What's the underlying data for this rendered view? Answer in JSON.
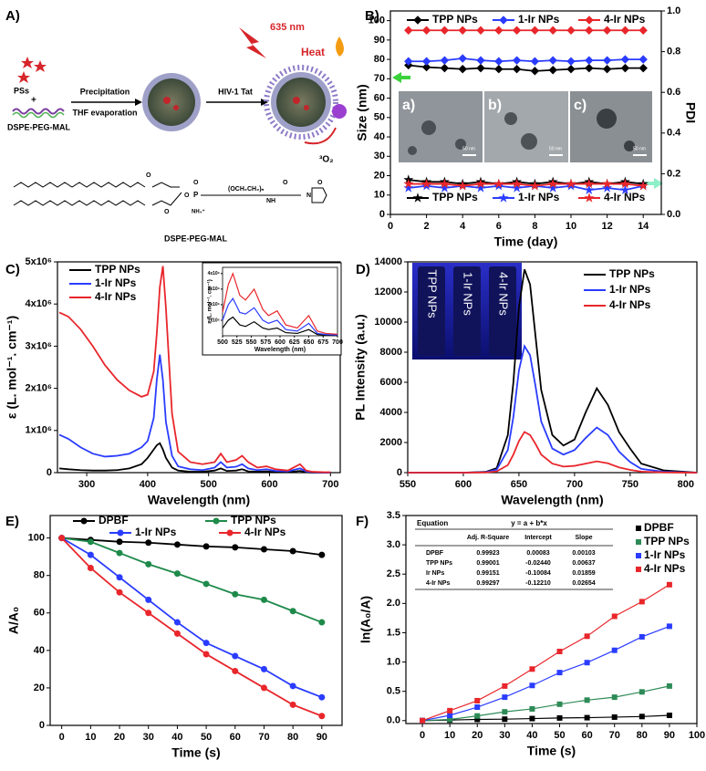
{
  "panel_a": {
    "label": "A)",
    "ps": "PSs",
    "plus": "+",
    "polymer": "DSPE-PEG-MAL",
    "step1": "Precipitation",
    "step2": "THF evaporation",
    "step3": "HIV-1 Tat",
    "laser": "635 nm",
    "heat": "Heat",
    "oxygen": "³O₂",
    "structure": [
      "O",
      "O",
      "O",
      "P",
      "O",
      "NH₄⁺",
      "(OCH₂CH₂)ₙ",
      "NH",
      "O",
      "N",
      "O"
    ],
    "structure_name": "DSPE-PEG-MAL"
  },
  "chart_data": [
    {
      "type": "line",
      "label": "B)",
      "xlabel": "Time (day)",
      "ylabel": "Size (nm)",
      "y2label": "PDI",
      "x": [
        1,
        2,
        3,
        4,
        5,
        6,
        7,
        8,
        9,
        10,
        11,
        12,
        13,
        14
      ],
      "xlim": [
        0,
        15
      ],
      "xticks": [
        0,
        2,
        4,
        6,
        8,
        10,
        12,
        14
      ],
      "ylim": [
        0,
        105
      ],
      "yticks": [
        0,
        10,
        20,
        30,
        40,
        50,
        60,
        70,
        80,
        90,
        100
      ],
      "y2lim": [
        0,
        1
      ],
      "y2ticks": [
        {
          "value": 0,
          "label": "0.0"
        },
        0.2,
        0.4,
        0.6,
        0.8,
        {
          "value": 1,
          "label": "1.0"
        }
      ],
      "series": [
        {
          "name": "TPP NPs",
          "color": "#000000",
          "marker": "diamond",
          "values": [
            77,
            76,
            75.5,
            75,
            75.5,
            75,
            75,
            74,
            74.5,
            75,
            75.5,
            75,
            75.5,
            75.5
          ]
        },
        {
          "name": "1-Ir NPs",
          "color": "#2a3cff",
          "marker": "diamond",
          "values": [
            79,
            79,
            79.5,
            80.5,
            79.5,
            79,
            79.5,
            79,
            79.5,
            79,
            79.5,
            79.5,
            80,
            80
          ]
        },
        {
          "name": "4-Ir NPs",
          "color": "#e8262b",
          "marker": "diamond",
          "values": [
            95,
            95,
            95,
            95,
            95,
            95,
            95,
            95,
            95,
            95,
            95,
            95,
            95,
            95
          ]
        },
        {
          "name": "TPP NPs",
          "color": "#000000",
          "marker": "star",
          "axis": "y2",
          "values": [
            0.17,
            0.16,
            0.16,
            0.15,
            0.16,
            0.15,
            0.16,
            0.15,
            0.16,
            0.15,
            0.16,
            0.15,
            0.16,
            0.15
          ]
        },
        {
          "name": "1-Ir NPs",
          "color": "#2a3cff",
          "marker": "star",
          "axis": "y2",
          "values": [
            0.13,
            0.14,
            0.13,
            0.14,
            0.13,
            0.14,
            0.13,
            0.14,
            0.13,
            0.14,
            0.12,
            0.13,
            0.12,
            0.14
          ]
        },
        {
          "name": "4-Ir NPs",
          "color": "#e8262b",
          "marker": "star",
          "axis": "y2",
          "values": [
            0.15,
            0.15,
            0.15,
            0.14,
            0.15,
            0.15,
            0.15,
            0.14,
            0.15,
            0.15,
            0.15,
            0.15,
            0.15,
            0.14
          ]
        }
      ],
      "inset_labels": [
        "a)",
        "b)",
        "c)"
      ],
      "scale_bar": "50 nm"
    },
    {
      "type": "line",
      "label": "C)",
      "xlabel": "Wavelength (nm)",
      "ylabel": "ε (L. mol⁻¹. cm⁻¹)",
      "x": [
        255,
        270,
        290,
        310,
        330,
        350,
        370,
        390,
        400,
        410,
        415,
        420,
        425,
        430,
        440,
        450,
        470,
        490,
        510,
        520,
        530,
        545,
        555,
        565,
        580,
        595,
        610,
        630,
        650,
        660,
        670,
        690,
        700
      ],
      "xlim": [
        252,
        716
      ],
      "xticks": [
        300,
        400,
        500,
        600,
        700
      ],
      "ylim": [
        0,
        5000000
      ],
      "yticks": [
        0,
        {
          "value": 1000000,
          "label": "1x10⁶"
        },
        {
          "value": 2000000,
          "label": "2x10⁶"
        },
        {
          "value": 3000000,
          "label": "3x10⁶"
        },
        {
          "value": 4000000,
          "label": "4x10⁶"
        },
        {
          "value": 5000000,
          "label": "5x10⁶"
        }
      ],
      "series": [
        {
          "name": "TPP NPs",
          "color": "#000000",
          "values": [
            100000,
            80000,
            60000,
            50000,
            50000,
            60000,
            100000,
            200000,
            350000,
            550000,
            650000,
            700000,
            550000,
            350000,
            120000,
            50000,
            20000,
            20000,
            50000,
            100000,
            40000,
            50000,
            80000,
            30000,
            20000,
            30000,
            10000,
            10000,
            40000,
            10000,
            0,
            0,
            0
          ]
        },
        {
          "name": "1-Ir NPs",
          "color": "#2a3cff",
          "values": [
            900000,
            800000,
            600000,
            450000,
            380000,
            400000,
            450000,
            600000,
            750000,
            1300000,
            2200000,
            2800000,
            2200000,
            1200000,
            400000,
            150000,
            80000,
            60000,
            120000,
            250000,
            120000,
            140000,
            200000,
            100000,
            60000,
            80000,
            40000,
            30000,
            100000,
            30000,
            10000,
            0,
            0
          ]
        },
        {
          "name": "4-Ir NPs",
          "color": "#e8262b",
          "values": [
            3800000,
            3700000,
            3400000,
            3000000,
            2550000,
            2200000,
            1950000,
            1800000,
            1850000,
            2400000,
            3300000,
            4400000,
            4900000,
            3900000,
            1400000,
            500000,
            250000,
            200000,
            250000,
            450000,
            250000,
            300000,
            400000,
            250000,
            120000,
            150000,
            80000,
            50000,
            200000,
            50000,
            20000,
            10000,
            10000
          ]
        }
      ]
    },
    {
      "type": "line",
      "xlabel": "Wavelength (nm)",
      "ylabel": "ε (L. mol⁻¹. cm⁻¹)",
      "x": [
        500,
        510,
        518,
        530,
        540,
        555,
        570,
        580,
        595,
        610,
        630,
        650,
        665,
        680,
        700
      ],
      "xlim": [
        500,
        700
      ],
      "xticks": [
        500,
        525,
        550,
        575,
        600,
        625,
        650,
        675,
        700
      ],
      "ylim": [
        0,
        4400000
      ],
      "yticks": [
        {
          "value": 1000000,
          "label": "1x10⁶"
        },
        {
          "value": 2000000,
          "label": "2x10⁶"
        },
        {
          "value": 3000000,
          "label": "3x10⁶"
        },
        {
          "value": 4000000,
          "label": "4x10⁶"
        }
      ],
      "series": [
        {
          "color": "#000000",
          "values": [
            500000,
            1000000,
            1200000,
            700000,
            600000,
            900000,
            500000,
            400000,
            500000,
            200000,
            150000,
            400000,
            80000,
            40000,
            20000
          ]
        },
        {
          "color": "#2a3cff",
          "values": [
            1000000,
            2000000,
            2400000,
            1500000,
            1400000,
            1800000,
            1000000,
            800000,
            1000000,
            400000,
            300000,
            800000,
            150000,
            80000,
            50000
          ]
        },
        {
          "color": "#e8262b",
          "values": [
            1500000,
            3300000,
            4000000,
            2600000,
            2300000,
            3000000,
            1700000,
            1300000,
            1600000,
            700000,
            500000,
            1300000,
            300000,
            150000,
            100000
          ]
        }
      ]
    },
    {
      "type": "line",
      "label": "D)",
      "xlabel": "Wavelength (nm)",
      "ylabel": "PL Intensity (a.u.)",
      "x": [
        550,
        600,
        620,
        630,
        640,
        645,
        650,
        655,
        660,
        665,
        670,
        680,
        690,
        700,
        710,
        720,
        730,
        740,
        750,
        760,
        780,
        800,
        810
      ],
      "xlim": [
        550,
        810
      ],
      "xticks": [
        550,
        600,
        650,
        700,
        750,
        800
      ],
      "ylim": [
        0,
        14000
      ],
      "yticks": [
        0,
        2000,
        4000,
        6000,
        8000,
        10000,
        12000,
        14000
      ],
      "series": [
        {
          "name": "TPP NPs",
          "color": "#000000",
          "values": [
            0,
            0,
            50,
            300,
            2500,
            6000,
            11000,
            13500,
            12500,
            9000,
            5500,
            2500,
            1800,
            2200,
            4000,
            5600,
            4500,
            2700,
            1600,
            600,
            150,
            50,
            0
          ]
        },
        {
          "name": "1-Ir NPs",
          "color": "#2a3cff",
          "values": [
            0,
            0,
            30,
            200,
            1500,
            3700,
            6800,
            8400,
            7800,
            5700,
            3400,
            1600,
            1200,
            1500,
            2300,
            3000,
            2500,
            1400,
            700,
            250,
            60,
            20,
            0
          ]
        },
        {
          "name": "4-Ir NPs",
          "color": "#e8262b",
          "values": [
            0,
            0,
            10,
            80,
            500,
            1200,
            2100,
            2700,
            2500,
            1900,
            1200,
            600,
            400,
            450,
            600,
            750,
            620,
            350,
            180,
            70,
            20,
            5,
            0
          ]
        }
      ],
      "inset_labels": [
        "TPP NPs",
        "1-Ir NPs",
        "4-Ir NPs"
      ]
    },
    {
      "type": "line",
      "label": "E)",
      "xlabel": "Time (s)",
      "ylabel": "A/A₀",
      "x": [
        0,
        10,
        20,
        30,
        40,
        50,
        60,
        70,
        80,
        90
      ],
      "xlim": [
        -4,
        97
      ],
      "xticks": [
        0,
        10,
        20,
        30,
        40,
        50,
        60,
        70,
        80,
        90
      ],
      "ylim": [
        0,
        112
      ],
      "yticks": [
        0,
        20,
        40,
        60,
        80,
        100
      ],
      "series": [
        {
          "name": "DPBF",
          "color": "#000000",
          "marker": "circle",
          "values": [
            100,
            99,
            98,
            97.5,
            96.5,
            95.5,
            95,
            94,
            93,
            91
          ]
        },
        {
          "name": "TPP NPs",
          "color": "#1e8a4a",
          "marker": "circle",
          "values": [
            100,
            98,
            92,
            86,
            81,
            75.5,
            70,
            67,
            61,
            55
          ]
        },
        {
          "name": "1-Ir NPs",
          "color": "#2a3cff",
          "marker": "circle",
          "values": [
            100,
            91,
            79,
            67,
            55,
            44,
            37,
            30,
            21,
            15
          ]
        },
        {
          "name": "4-Ir NPs",
          "color": "#e8262b",
          "marker": "circle",
          "values": [
            100,
            84,
            71,
            60,
            49,
            38,
            29,
            20,
            11,
            5
          ]
        }
      ]
    },
    {
      "type": "scatter",
      "label": "F)",
      "xlabel": "Time (s)",
      "ylabel": "ln(A₀/A)",
      "x": [
        0,
        10,
        20,
        30,
        40,
        50,
        60,
        70,
        80,
        90
      ],
      "xlim": [
        -6,
        100
      ],
      "xticks": [
        0,
        10,
        20,
        30,
        40,
        50,
        60,
        70,
        80,
        90,
        100
      ],
      "ylim": [
        -0.05,
        3.5
      ],
      "yticks": [
        {
          "value": 0,
          "label": "0.0"
        },
        0.5,
        {
          "value": 1,
          "label": "1.0"
        },
        1.5,
        {
          "value": 2,
          "label": "2.0"
        },
        2.5,
        {
          "value": 3,
          "label": "3.0"
        },
        3.5
      ],
      "series": [
        {
          "name": "DPBF",
          "color": "#000000",
          "marker": "square",
          "values": [
            0,
            0.01,
            0.02,
            0.025,
            0.035,
            0.045,
            0.05,
            0.06,
            0.07,
            0.09
          ]
        },
        {
          "name": "TPP NPs",
          "color": "#2e8b57",
          "marker": "square",
          "values": [
            0,
            0.02,
            0.08,
            0.15,
            0.2,
            0.28,
            0.35,
            0.4,
            0.49,
            0.59
          ]
        },
        {
          "name": "1-Ir NPs",
          "color": "#2a3cff",
          "marker": "square",
          "values": [
            0,
            0.09,
            0.23,
            0.4,
            0.6,
            0.82,
            0.99,
            1.2,
            1.43,
            1.61
          ]
        },
        {
          "name": "4-Ir NPs",
          "color": "#e8262b",
          "marker": "square",
          "values": [
            0,
            0.17,
            0.34,
            0.59,
            0.88,
            1.18,
            1.44,
            1.78,
            2.03,
            2.32
          ]
        }
      ],
      "table": {
        "header": [
          "Equation",
          "y = a + b*x"
        ],
        "columns": [
          "Adj. R-Square",
          "Intercept",
          "Slope"
        ],
        "rows": [
          [
            "DPBF",
            "0.99923",
            "0.00083",
            "0.00103"
          ],
          [
            "TPP NPs",
            "0.99001",
            "-0.02440",
            "0.00637"
          ],
          [
            "Ir NPs",
            "0.99151",
            "-0.10084",
            "0.01859"
          ],
          [
            "4-Ir NPs",
            "0.99297",
            "-0.12210",
            "0.02654"
          ]
        ]
      }
    }
  ]
}
